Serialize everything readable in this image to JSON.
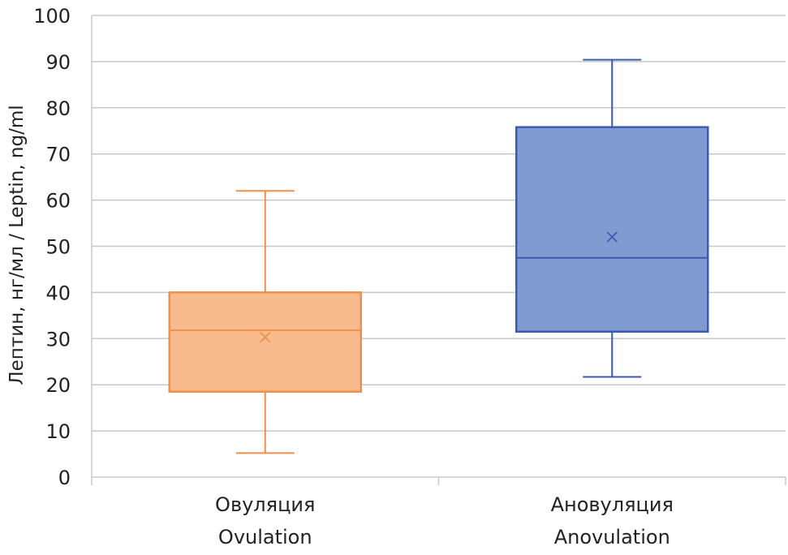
{
  "chart_data": {
    "type": "box",
    "ylabel": "Лептин, нг/мл / Leptin, ng/ml",
    "ylim": [
      0,
      100
    ],
    "yticks": [
      0,
      10,
      20,
      30,
      40,
      50,
      60,
      70,
      80,
      90,
      100
    ],
    "grid": true,
    "categories": [
      {
        "label_line1": "Овуляция",
        "label_line2": "Ovulation",
        "min": 5.2,
        "q1": 18.5,
        "median": 31.8,
        "q3": 40.0,
        "max": 62.0,
        "mean": 30.3,
        "fill": "#f7bb8e",
        "stroke": "#f28e4c"
      },
      {
        "label_line1": "Ановуляция",
        "label_line2": "Anovulation",
        "min": 21.7,
        "q1": 31.5,
        "median": 47.5,
        "q3": 75.8,
        "max": 90.4,
        "mean": 52.0,
        "fill": "#7f9bd2",
        "stroke": "#3a5bb0"
      }
    ]
  }
}
